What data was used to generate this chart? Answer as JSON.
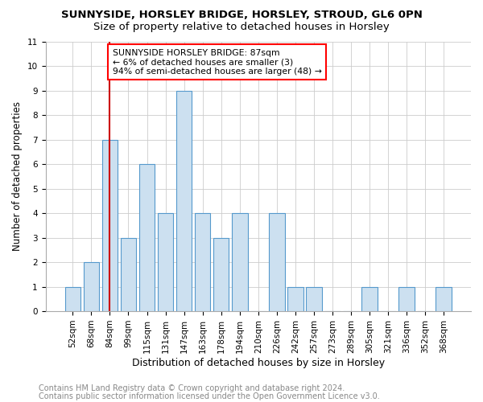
{
  "title1": "SUNNYSIDE, HORSLEY BRIDGE, HORSLEY, STROUD, GL6 0PN",
  "title2": "Size of property relative to detached houses in Horsley",
  "xlabel": "Distribution of detached houses by size in Horsley",
  "ylabel": "Number of detached properties",
  "categories": [
    "52sqm",
    "68sqm",
    "84sqm",
    "99sqm",
    "115sqm",
    "131sqm",
    "147sqm",
    "163sqm",
    "178sqm",
    "194sqm",
    "210sqm",
    "226sqm",
    "242sqm",
    "257sqm",
    "273sqm",
    "289sqm",
    "305sqm",
    "321sqm",
    "336sqm",
    "352sqm",
    "368sqm"
  ],
  "values": [
    1,
    2,
    7,
    3,
    6,
    4,
    9,
    4,
    3,
    4,
    0,
    4,
    1,
    1,
    0,
    0,
    1,
    0,
    1,
    0,
    1
  ],
  "bar_color": "#cce0f0",
  "bar_edge_color": "#5599cc",
  "red_line_index": 2,
  "ylim": [
    0,
    11
  ],
  "annotation_box_text": "SUNNYSIDE HORSLEY BRIDGE: 87sqm\n← 6% of detached houses are smaller (3)\n94% of semi-detached houses are larger (48) →",
  "annotation_box_color": "white",
  "annotation_box_edge_color": "red",
  "red_line_color": "#cc0000",
  "footer1": "Contains HM Land Registry data © Crown copyright and database right 2024.",
  "footer2": "Contains public sector information licensed under the Open Government Licence v3.0.",
  "background_color": "white",
  "plot_bg_color": "white",
  "grid_color": "#cccccc",
  "title1_fontsize": 9.5,
  "title2_fontsize": 9.5,
  "xlabel_fontsize": 9,
  "ylabel_fontsize": 8.5,
  "tick_fontsize": 7.5,
  "annotation_fontsize": 7.8,
  "footer_fontsize": 7.0,
  "footer_color": "#888888"
}
